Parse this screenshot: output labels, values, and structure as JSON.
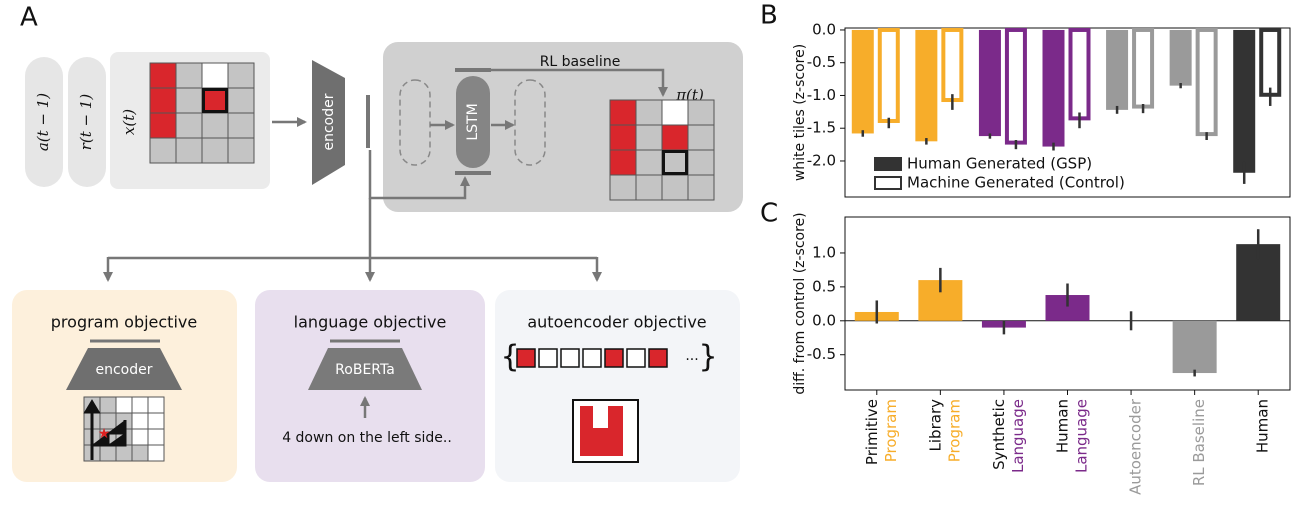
{
  "diagram": {
    "panels": [
      "A",
      "B",
      "C"
    ],
    "inputs": [
      "a(t − 1)",
      "r(t − 1)",
      "x(t)"
    ],
    "encoder": "encoder",
    "rl_title": "RL baseline",
    "lstm": "LSTM",
    "policy": "π(t)",
    "objectives": [
      {
        "title": "program objective",
        "module": "encoder"
      },
      {
        "title": "language objective",
        "module": "RoBERTa",
        "text": "4 down on the left side.."
      },
      {
        "title": "autoencoder objective"
      }
    ]
  },
  "chart_data": [
    {
      "type": "bar",
      "ylabel": "white tiles (z-score)",
      "ylim": [
        -2.55,
        0.03
      ],
      "yticks": [
        {
          "value": 0,
          "label": "0.0"
        },
        -0.5,
        {
          "value": -1,
          "label": "-1.0"
        },
        -1.5,
        {
          "value": -2,
          "label": "-2.0"
        }
      ],
      "colors": [
        "#f7ad2a",
        "#f7ad2a",
        "#7b2a8a",
        "#7b2a8a",
        "#9a9a9a",
        "#9a9a9a",
        "#333333"
      ],
      "legend": "lower left",
      "series": [
        {
          "name": "Human Generated (GSP)",
          "color": "#333333",
          "style": "filled",
          "values": [
            -1.58,
            -1.7,
            -1.62,
            -1.78,
            -1.22,
            -0.85,
            -2.18
          ],
          "errors": [
            0.05,
            0.05,
            0.04,
            0.06,
            0.06,
            0.04,
            0.17
          ]
        },
        {
          "name": "Machine Generated (Control)",
          "color": "#333333",
          "style": "outline",
          "values": [
            -1.42,
            -1.1,
            -1.75,
            -1.38,
            -1.2,
            -1.62,
            -1.02
          ],
          "errors": [
            0.08,
            0.12,
            0.07,
            0.12,
            0.07,
            0.06,
            0.14
          ]
        }
      ]
    },
    {
      "type": "bar",
      "ylabel": "diff. from control (z-score)",
      "ylim": [
        -1.02,
        1.53
      ],
      "yticks": [
        -0.5,
        {
          "value": 0,
          "label": "0.0"
        },
        0.5,
        {
          "value": 1,
          "label": "1.0"
        }
      ],
      "categories": [
        [
          "Primitive",
          "Program"
        ],
        [
          "Library",
          "Program"
        ],
        [
          "Synthetic",
          "Language"
        ],
        [
          "Human",
          "Language"
        ],
        [
          "Autoencoder"
        ],
        [
          "RL Baseline"
        ],
        [
          "Human"
        ]
      ],
      "label_colors": [
        [
          "#111111",
          "#f7ad2a"
        ],
        [
          "#111111",
          "#f7ad2a"
        ],
        [
          "#111111",
          "#7b2a8a"
        ],
        [
          "#111111",
          "#7b2a8a"
        ],
        [
          "#9a9a9a"
        ],
        [
          "#9a9a9a"
        ],
        [
          "#111111"
        ]
      ],
      "colors": [
        "#f7ad2a",
        "#f7ad2a",
        "#7b2a8a",
        "#7b2a8a",
        "#9a9a9a",
        "#9a9a9a",
        "#333333"
      ],
      "values": [
        0.13,
        0.6,
        -0.1,
        0.38,
        0,
        -0.77,
        1.13
      ],
      "errors": [
        0.17,
        0.18,
        0.1,
        0.17,
        0.14,
        0.05,
        0.22
      ]
    }
  ]
}
